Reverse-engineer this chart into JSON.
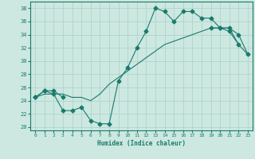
{
  "xlabel": "Humidex (Indice chaleur)",
  "ylabel": "",
  "xlim": [
    -0.5,
    23.5
  ],
  "ylim": [
    19.5,
    39.0
  ],
  "xticks": [
    0,
    1,
    2,
    3,
    4,
    5,
    6,
    7,
    8,
    9,
    10,
    11,
    12,
    13,
    14,
    15,
    16,
    17,
    18,
    19,
    20,
    21,
    22,
    23
  ],
  "yticks": [
    20,
    22,
    24,
    26,
    28,
    30,
    32,
    34,
    36,
    38
  ],
  "bg_color": "#cce8e0",
  "line_color": "#1a7a6e",
  "grid_color": "#aacfc8",
  "line1_x": [
    0,
    1,
    2,
    3,
    4,
    5,
    6,
    7,
    8,
    9,
    10,
    11,
    12,
    13,
    14,
    15,
    16,
    17,
    18,
    19,
    20,
    21,
    22,
    23
  ],
  "line1_y": [
    24.5,
    25.5,
    25.0,
    22.5,
    22.5,
    23.0,
    21.0,
    20.5,
    20.5,
    27.0,
    29.0,
    32.0,
    34.5,
    38.0,
    37.5,
    36.0,
    37.5,
    37.5,
    36.5,
    36.5,
    35.0,
    34.5,
    32.5,
    null
  ],
  "line2_x": [
    0,
    1,
    2,
    3,
    4,
    5,
    6,
    7,
    8,
    9,
    10,
    11,
    12,
    13,
    14,
    15,
    16,
    17,
    18,
    19,
    20,
    21,
    22,
    23
  ],
  "line2_y": [
    24.5,
    25.5,
    25.5,
    24.5,
    null,
    null,
    null,
    null,
    null,
    null,
    null,
    null,
    null,
    null,
    null,
    null,
    null,
    null,
    null,
    35.0,
    35.0,
    35.0,
    34.0,
    31.0
  ],
  "line3_x": [
    0,
    1,
    2,
    3,
    4,
    5,
    6,
    7,
    8,
    9,
    10,
    11,
    12,
    13,
    14,
    15,
    16,
    17,
    18,
    19,
    20,
    21,
    22,
    23
  ],
  "line3_y": [
    24.5,
    25.0,
    25.0,
    25.0,
    24.5,
    24.5,
    24.0,
    25.0,
    26.5,
    27.5,
    28.5,
    29.5,
    30.5,
    31.5,
    32.5,
    33.0,
    33.5,
    34.0,
    34.5,
    35.0,
    35.0,
    35.0,
    32.5,
    31.0
  ]
}
